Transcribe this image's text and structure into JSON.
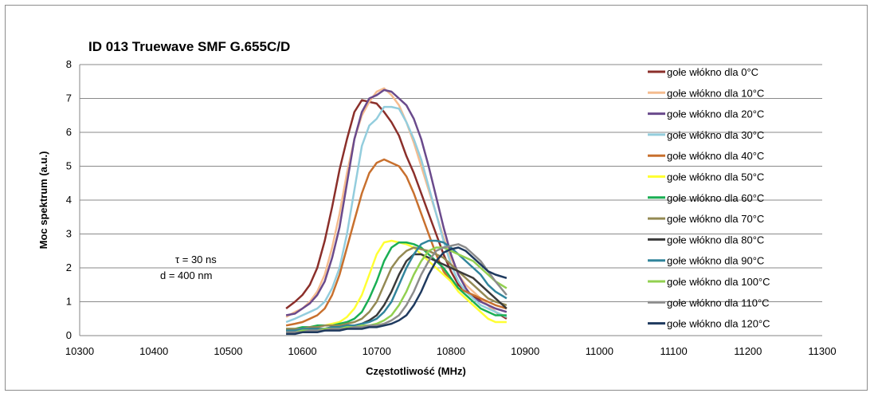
{
  "chart_data": {
    "type": "line",
    "title": "ID 013 Truewave SMF G.655C/D",
    "xlabel": "Częstotliwość (MHz)",
    "ylabel": "Moc spektrum (a.u.)",
    "xlim": [
      10300,
      11300
    ],
    "ylim": [
      0,
      8
    ],
    "xticks": [
      10300,
      10400,
      10500,
      10600,
      10700,
      10800,
      10900,
      11000,
      11100,
      11200,
      11300
    ],
    "yticks": [
      0,
      1,
      2,
      3,
      4,
      5,
      6,
      7,
      8
    ],
    "grid": "horizontal",
    "legend_position": "right",
    "annotations": [
      "τ = 30 ns",
      "d = 400 nm"
    ],
    "series": [
      {
        "name": "gołe włókno dla 0°C",
        "color": "#8B2F2A",
        "x": [
          10578,
          10590,
          10600,
          10610,
          10620,
          10630,
          10640,
          10650,
          10660,
          10670,
          10680,
          10690,
          10700,
          10710,
          10720,
          10730,
          10740,
          10750,
          10760,
          10770,
          10780,
          10790,
          10800,
          10810,
          10820,
          10830,
          10840,
          10850,
          10860,
          10875
        ],
        "y": [
          0.8,
          1.0,
          1.2,
          1.5,
          2.0,
          2.8,
          3.8,
          4.9,
          5.8,
          6.6,
          6.95,
          6.9,
          6.85,
          6.6,
          6.3,
          5.9,
          5.3,
          4.8,
          4.2,
          3.6,
          3.0,
          2.4,
          1.9,
          1.5,
          1.3,
          1.15,
          1.05,
          0.9,
          0.7,
          0.5
        ]
      },
      {
        "name": "gołe włókno dla 10°C",
        "color": "#F5BC8F",
        "x": [
          10578,
          10590,
          10600,
          10610,
          10620,
          10630,
          10640,
          10650,
          10660,
          10670,
          10680,
          10690,
          10700,
          10710,
          10720,
          10730,
          10740,
          10750,
          10760,
          10770,
          10780,
          10790,
          10800,
          10810,
          10820,
          10830,
          10840,
          10850,
          10860,
          10875
        ],
        "y": [
          0.55,
          0.7,
          0.8,
          1.0,
          1.3,
          1.8,
          2.6,
          3.6,
          4.8,
          5.8,
          6.5,
          6.9,
          7.2,
          7.3,
          7.1,
          6.8,
          6.3,
          5.7,
          5.0,
          4.3,
          3.6,
          2.9,
          2.3,
          1.8,
          1.5,
          1.3,
          1.1,
          0.9,
          0.7,
          0.55
        ]
      },
      {
        "name": "gołe włókno dla 20°C",
        "color": "#6A4A8C",
        "x": [
          10578,
          10590,
          10600,
          10610,
          10620,
          10630,
          10640,
          10650,
          10660,
          10670,
          10680,
          10690,
          10700,
          10710,
          10720,
          10730,
          10740,
          10750,
          10760,
          10770,
          10780,
          10790,
          10800,
          10810,
          10820,
          10830,
          10840,
          10850,
          10860,
          10875
        ],
        "y": [
          0.6,
          0.65,
          0.8,
          0.95,
          1.2,
          1.6,
          2.3,
          3.2,
          4.5,
          5.8,
          6.6,
          7.0,
          7.1,
          7.25,
          7.2,
          7.0,
          6.8,
          6.4,
          5.8,
          5.0,
          4.1,
          3.2,
          2.4,
          1.8,
          1.4,
          1.1,
          1.0,
          0.9,
          0.8,
          0.7
        ]
      },
      {
        "name": "gołe włókno dla 30°C",
        "color": "#93CDDD",
        "x": [
          10578,
          10590,
          10600,
          10610,
          10620,
          10630,
          10640,
          10650,
          10660,
          10670,
          10680,
          10690,
          10700,
          10710,
          10720,
          10730,
          10740,
          10750,
          10760,
          10770,
          10780,
          10790,
          10800,
          10810,
          10820,
          10830,
          10840,
          10850,
          10860,
          10875
        ],
        "y": [
          0.4,
          0.5,
          0.6,
          0.7,
          0.8,
          1.0,
          1.4,
          2.0,
          3.0,
          4.3,
          5.6,
          6.2,
          6.4,
          6.75,
          6.75,
          6.7,
          6.3,
          5.8,
          5.2,
          4.4,
          3.6,
          2.8,
          2.1,
          1.6,
          1.3,
          1.1,
          0.9,
          0.8,
          0.7,
          0.55
        ]
      },
      {
        "name": "gołe włókno dla 40°C",
        "color": "#C8702E",
        "x": [
          10578,
          10590,
          10600,
          10610,
          10620,
          10630,
          10640,
          10650,
          10660,
          10670,
          10680,
          10690,
          10700,
          10710,
          10720,
          10730,
          10740,
          10750,
          10760,
          10770,
          10780,
          10790,
          10800,
          10810,
          10820,
          10830,
          10840,
          10850,
          10860,
          10875
        ],
        "y": [
          0.3,
          0.35,
          0.4,
          0.5,
          0.6,
          0.8,
          1.2,
          1.8,
          2.6,
          3.4,
          4.2,
          4.8,
          5.1,
          5.2,
          5.1,
          5.0,
          4.7,
          4.2,
          3.6,
          3.0,
          2.4,
          1.9,
          1.6,
          1.4,
          1.3,
          1.2,
          1.1,
          1.0,
          0.9,
          0.8
        ]
      },
      {
        "name": "gołe włókno dla 50°C",
        "color": "#FFFF33",
        "x": [
          10578,
          10590,
          10600,
          10610,
          10620,
          10630,
          10640,
          10650,
          10660,
          10670,
          10680,
          10690,
          10700,
          10710,
          10720,
          10730,
          10740,
          10750,
          10760,
          10770,
          10780,
          10790,
          10800,
          10810,
          10820,
          10830,
          10840,
          10850,
          10860,
          10875
        ],
        "y": [
          0.15,
          0.2,
          0.2,
          0.25,
          0.3,
          0.3,
          0.35,
          0.4,
          0.55,
          0.8,
          1.2,
          1.8,
          2.4,
          2.75,
          2.8,
          2.75,
          2.7,
          2.6,
          2.4,
          2.2,
          2.0,
          1.8,
          1.6,
          1.3,
          1.1,
          0.9,
          0.7,
          0.5,
          0.4,
          0.4
        ]
      },
      {
        "name": "gołe włókno dla 60°C",
        "color": "#1AAF54",
        "x": [
          10578,
          10590,
          10600,
          10610,
          10620,
          10630,
          10640,
          10650,
          10660,
          10670,
          10680,
          10690,
          10700,
          10710,
          10720,
          10730,
          10740,
          10750,
          10760,
          10770,
          10780,
          10790,
          10800,
          10810,
          10820,
          10830,
          10840,
          10850,
          10860,
          10875
        ],
        "y": [
          0.2,
          0.2,
          0.25,
          0.25,
          0.3,
          0.3,
          0.3,
          0.35,
          0.4,
          0.5,
          0.7,
          1.1,
          1.6,
          2.2,
          2.6,
          2.75,
          2.75,
          2.7,
          2.6,
          2.4,
          2.2,
          2.0,
          1.7,
          1.4,
          1.2,
          1.0,
          0.8,
          0.7,
          0.6,
          0.6
        ]
      },
      {
        "name": "gołe włókno dla 70°C",
        "color": "#948A54",
        "x": [
          10578,
          10590,
          10600,
          10610,
          10620,
          10630,
          10640,
          10650,
          10660,
          10670,
          10680,
          10690,
          10700,
          10710,
          10720,
          10730,
          10740,
          10750,
          10760,
          10770,
          10780,
          10790,
          10800,
          10810,
          10820,
          10830,
          10840,
          10850,
          10860,
          10875
        ],
        "y": [
          0.2,
          0.2,
          0.2,
          0.25,
          0.25,
          0.3,
          0.3,
          0.3,
          0.35,
          0.4,
          0.5,
          0.7,
          1.0,
          1.5,
          2.0,
          2.3,
          2.5,
          2.6,
          2.55,
          2.5,
          2.4,
          2.3,
          2.1,
          1.9,
          1.7,
          1.5,
          1.3,
          1.1,
          1.0,
          0.9
        ]
      },
      {
        "name": "gołe włókno dla 80°C",
        "color": "#3A3A3A",
        "x": [
          10578,
          10590,
          10600,
          10610,
          10620,
          10630,
          10640,
          10650,
          10660,
          10670,
          10680,
          10690,
          10700,
          10710,
          10720,
          10730,
          10740,
          10750,
          10760,
          10770,
          10780,
          10790,
          10800,
          10810,
          10820,
          10830,
          10840,
          10850,
          10860,
          10875
        ],
        "y": [
          0.15,
          0.15,
          0.15,
          0.2,
          0.2,
          0.2,
          0.25,
          0.25,
          0.3,
          0.3,
          0.35,
          0.45,
          0.6,
          0.9,
          1.3,
          1.8,
          2.2,
          2.4,
          2.4,
          2.3,
          2.2,
          2.1,
          2.0,
          1.9,
          1.8,
          1.7,
          1.5,
          1.3,
          1.1,
          0.8
        ]
      },
      {
        "name": "gołe włókno dla 90°C",
        "color": "#31859C",
        "x": [
          10578,
          10590,
          10600,
          10610,
          10620,
          10630,
          10640,
          10650,
          10660,
          10670,
          10680,
          10690,
          10700,
          10710,
          10720,
          10730,
          10740,
          10750,
          10760,
          10770,
          10780,
          10790,
          10800,
          10810,
          10820,
          10830,
          10840,
          10850,
          10860,
          10875
        ],
        "y": [
          0.15,
          0.15,
          0.2,
          0.2,
          0.2,
          0.2,
          0.25,
          0.25,
          0.3,
          0.3,
          0.35,
          0.4,
          0.5,
          0.7,
          1.0,
          1.5,
          2.0,
          2.4,
          2.7,
          2.8,
          2.8,
          2.75,
          2.6,
          2.4,
          2.2,
          2.0,
          1.8,
          1.5,
          1.3,
          1.1
        ]
      },
      {
        "name": "gołe włókno dla 100°C",
        "color": "#92D050",
        "x": [
          10578,
          10590,
          10600,
          10610,
          10620,
          10630,
          10640,
          10650,
          10660,
          10670,
          10680,
          10690,
          10700,
          10710,
          10720,
          10730,
          10740,
          10750,
          10760,
          10770,
          10780,
          10790,
          10800,
          10810,
          10820,
          10830,
          10840,
          10850,
          10860,
          10875
        ],
        "y": [
          0.1,
          0.1,
          0.15,
          0.15,
          0.15,
          0.2,
          0.2,
          0.2,
          0.25,
          0.25,
          0.3,
          0.3,
          0.35,
          0.45,
          0.6,
          0.9,
          1.3,
          1.8,
          2.2,
          2.5,
          2.6,
          2.6,
          2.5,
          2.4,
          2.3,
          2.2,
          2.0,
          1.8,
          1.6,
          1.4
        ]
      },
      {
        "name": "gołe włókno dla 110°C",
        "color": "#8C8C8C",
        "x": [
          10578,
          10590,
          10600,
          10610,
          10620,
          10630,
          10640,
          10650,
          10660,
          10670,
          10680,
          10690,
          10700,
          10710,
          10720,
          10730,
          10740,
          10750,
          10760,
          10770,
          10780,
          10790,
          10800,
          10810,
          10820,
          10830,
          10840,
          10850,
          10860,
          10875
        ],
        "y": [
          0.1,
          0.1,
          0.1,
          0.15,
          0.15,
          0.15,
          0.2,
          0.2,
          0.2,
          0.25,
          0.25,
          0.3,
          0.3,
          0.35,
          0.45,
          0.6,
          0.9,
          1.3,
          1.8,
          2.2,
          2.5,
          2.6,
          2.65,
          2.7,
          2.6,
          2.4,
          2.2,
          1.9,
          1.6,
          1.2
        ]
      },
      {
        "name": "gołe włókno dla 120°C",
        "color": "#1F3A5F",
        "x": [
          10578,
          10590,
          10600,
          10610,
          10620,
          10630,
          10640,
          10650,
          10660,
          10670,
          10680,
          10690,
          10700,
          10710,
          10720,
          10730,
          10740,
          10750,
          10760,
          10770,
          10780,
          10790,
          10800,
          10810,
          10820,
          10830,
          10840,
          10850,
          10860,
          10875
        ],
        "y": [
          0.05,
          0.05,
          0.1,
          0.1,
          0.1,
          0.15,
          0.15,
          0.15,
          0.2,
          0.2,
          0.2,
          0.25,
          0.25,
          0.3,
          0.35,
          0.45,
          0.6,
          0.9,
          1.3,
          1.8,
          2.2,
          2.45,
          2.55,
          2.6,
          2.5,
          2.3,
          2.1,
          1.9,
          1.8,
          1.7
        ]
      }
    ]
  }
}
